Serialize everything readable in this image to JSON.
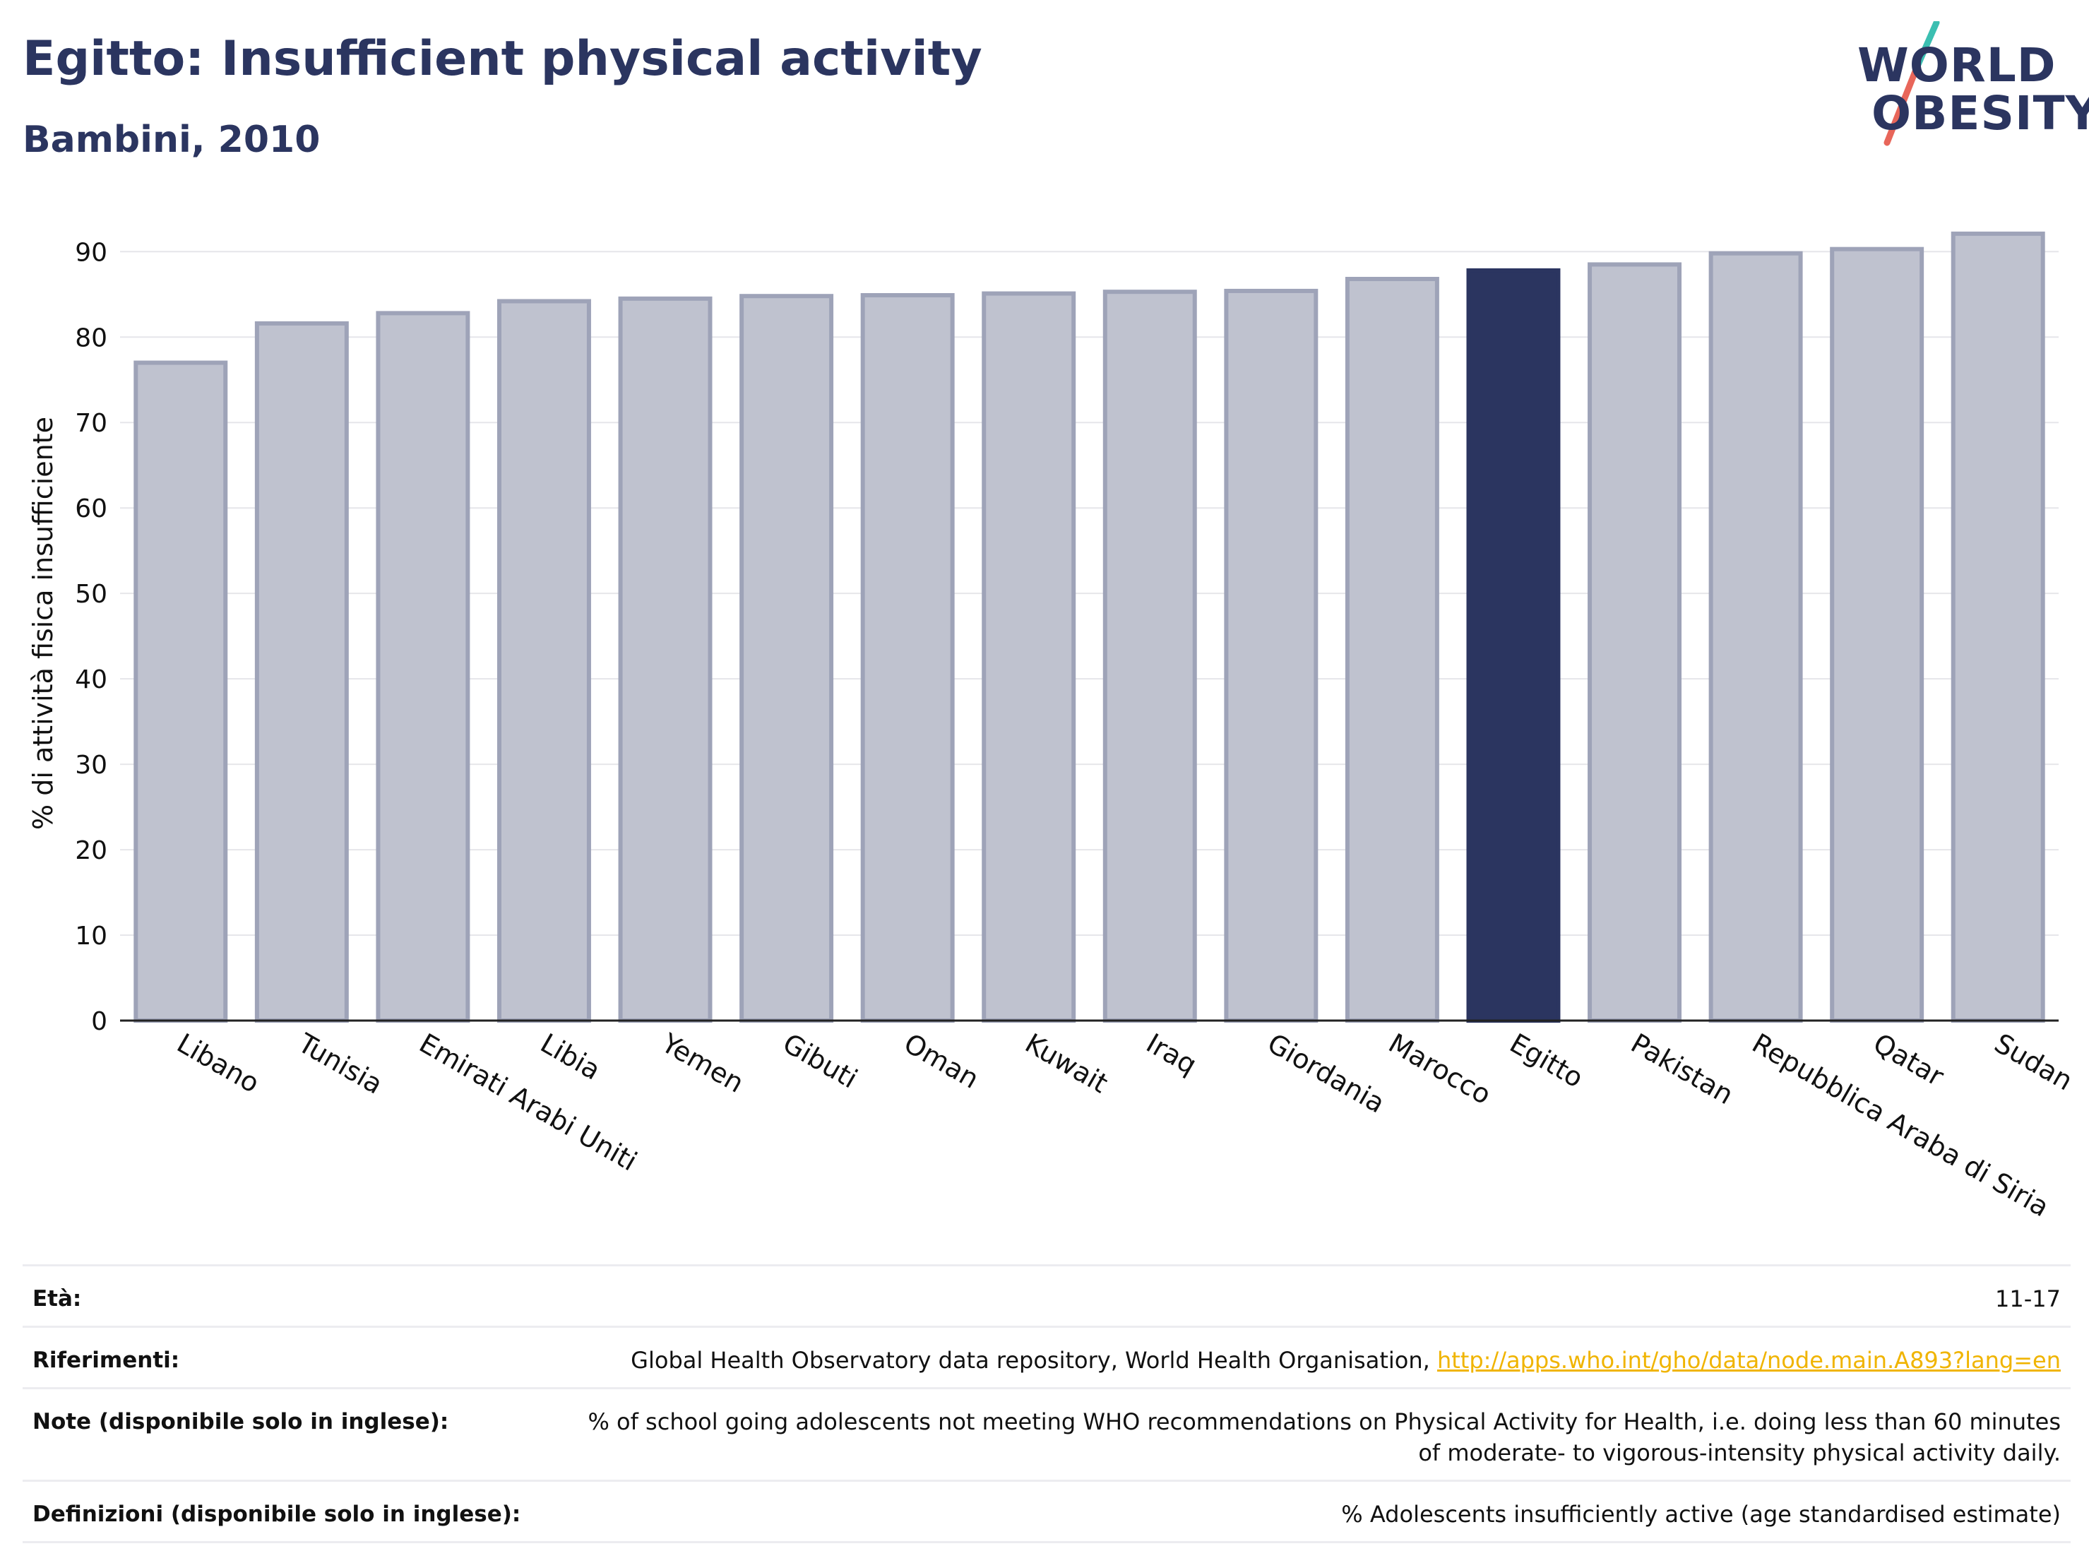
{
  "header": {
    "title": "Egitto: Insufficient physical activity",
    "subtitle": "Bambini, 2010"
  },
  "logo": {
    "line1": "WORLD",
    "line2": "OBESITY",
    "colors": {
      "text": "#2b3560",
      "slash_top": "#3bbfb1",
      "slash_bottom": "#e8665a"
    }
  },
  "chart_data": {
    "type": "bar",
    "categories": [
      "Libano",
      "Tunisia",
      "Emirati Arabi Uniti",
      "Libia",
      "Yemen",
      "Gibuti",
      "Oman",
      "Kuwait",
      "Iraq",
      "Giordania",
      "Marocco",
      "Egitto",
      "Pakistan",
      "Repubblica Araba di Siria",
      "Qatar",
      "Sudan"
    ],
    "values": [
      77,
      81.6,
      82.8,
      84.2,
      84.5,
      84.8,
      84.9,
      85.1,
      85.3,
      85.4,
      86.8,
      87.8,
      88.5,
      89.8,
      90.3,
      92.1
    ],
    "highlight": "Egitto",
    "ylabel": "% di attività fisica insufficiente",
    "xlabel": "",
    "ylim": [
      0,
      93
    ],
    "yticks": [
      0,
      10,
      20,
      30,
      40,
      50,
      60,
      70,
      80,
      90
    ],
    "grid": true,
    "colors": {
      "bar": "#bfc2cf",
      "bar_border": "#9ea3b8",
      "highlight": "#2b3560"
    }
  },
  "footer": {
    "rows": [
      {
        "label": "Età:",
        "value": "11-17"
      },
      {
        "label": "Riferimenti:",
        "value": "Global Health Observatory data repository, World Health Organisation, ",
        "link": "http://apps.who.int/gho/data/node.main.A893?lang=en"
      },
      {
        "label": "Note (disponibile solo in inglese):",
        "value": "% of school going adolescents not meeting WHO recommendations on Physical Activity for Health, i.e. doing less than 60 minutes of moderate- to vigorous-intensity physical activity daily."
      },
      {
        "label": "Definizioni (disponibile solo in inglese):",
        "value": "% Adolescents insufficiently active (age standardised estimate)"
      }
    ]
  }
}
